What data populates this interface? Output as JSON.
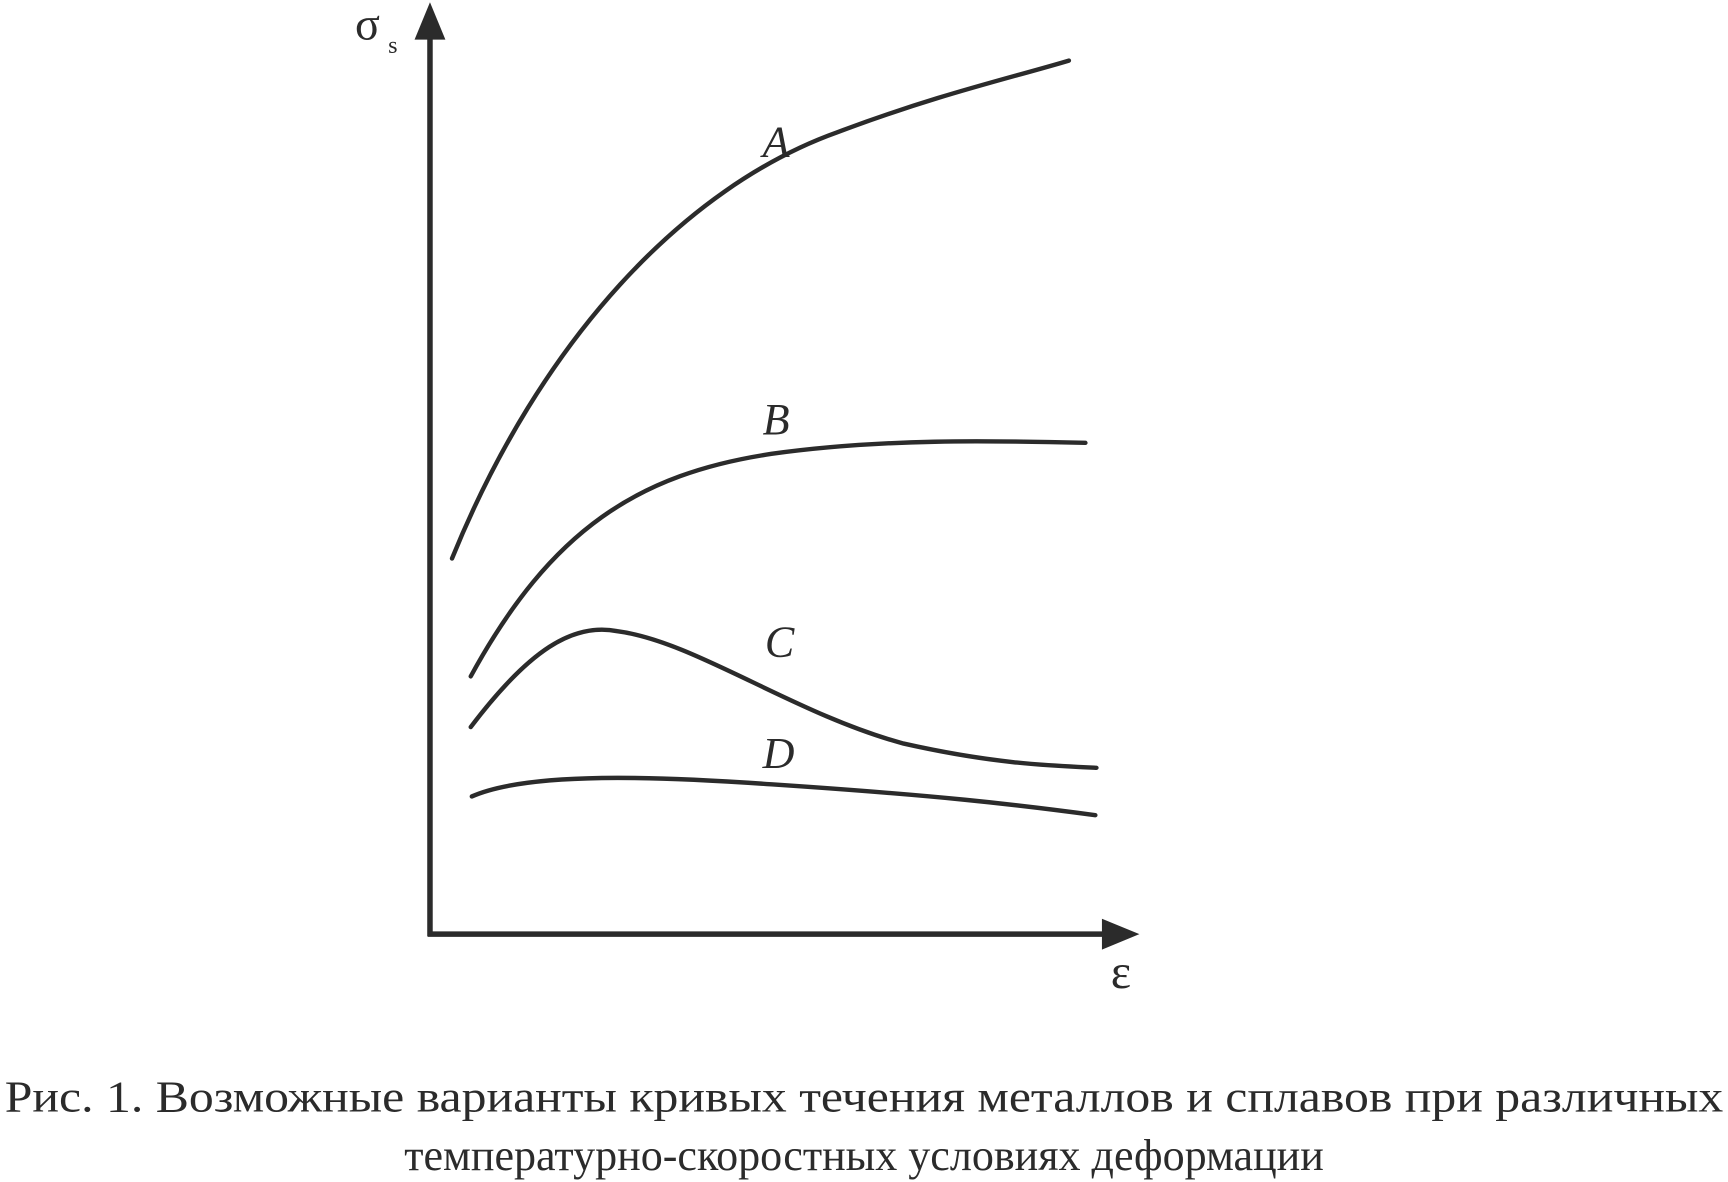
{
  "axes": {
    "y_label": "σ",
    "y_label_subscript": "s",
    "x_label": "ε"
  },
  "curves": [
    {
      "label": "A"
    },
    {
      "label": "B"
    },
    {
      "label": "C"
    },
    {
      "label": "D"
    }
  ],
  "caption": {
    "line1": "Рис. 1. Возможные варианты кривых течения металлов и сплавов при различных",
    "line2": "температурно-скоростных условиях деформации"
  }
}
